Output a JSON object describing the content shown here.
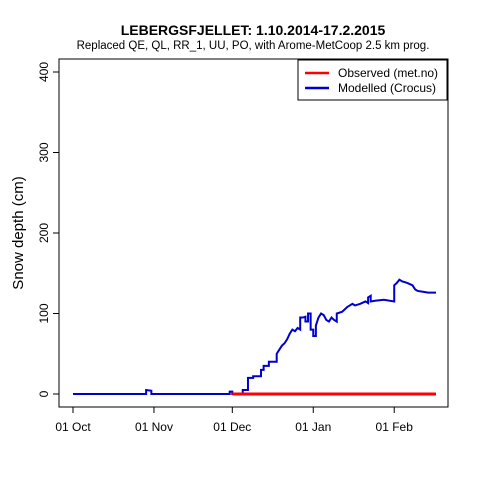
{
  "chart_data": {
    "type": "line",
    "title": "LEBERGSFJELLET: 1.10.2014-17.2.2015",
    "subtitle": "Replaced QE, QL, RR_1, UU, PO,  with Arome-MetCoop 2.5 km prog.",
    "xlabel": "",
    "ylabel": "Snow depth (cm)",
    "xlim": [
      "2014-10-01",
      "2015-02-17"
    ],
    "ylim": [
      0,
      400
    ],
    "x_ticks": [
      {
        "date": "2014-10-01",
        "label": "01 Oct"
      },
      {
        "date": "2014-11-01",
        "label": "01 Nov"
      },
      {
        "date": "2014-12-01",
        "label": "01 Dec"
      },
      {
        "date": "2015-01-01",
        "label": "01 Jan"
      },
      {
        "date": "2015-02-01",
        "label": "01 Feb"
      }
    ],
    "y_ticks": [
      0,
      100,
      200,
      300,
      400
    ],
    "grid": false,
    "legend_position": "top-right",
    "series": [
      {
        "name": "Observed (met.no)",
        "color": "#ff0000",
        "points": [
          [
            "2014-12-01",
            0
          ],
          [
            "2015-02-17",
            0
          ]
        ]
      },
      {
        "name": "Modelled (Crocus)",
        "color": "#0000cc",
        "points": [
          [
            "2014-10-01",
            0
          ],
          [
            "2014-10-29",
            0
          ],
          [
            "2014-10-29",
            5
          ],
          [
            "2014-10-31",
            4
          ],
          [
            "2014-10-31",
            0
          ],
          [
            "2014-11-30",
            0
          ],
          [
            "2014-11-30",
            3
          ],
          [
            "2014-12-01",
            3
          ],
          [
            "2014-12-01",
            0
          ],
          [
            "2014-12-05",
            0
          ],
          [
            "2014-12-05",
            5
          ],
          [
            "2014-12-07",
            5
          ],
          [
            "2014-12-07",
            20
          ],
          [
            "2014-12-09",
            20
          ],
          [
            "2014-12-09",
            22
          ],
          [
            "2014-12-12",
            22
          ],
          [
            "2014-12-12",
            30
          ],
          [
            "2014-12-13",
            30
          ],
          [
            "2014-12-13",
            35
          ],
          [
            "2014-12-15",
            35
          ],
          [
            "2014-12-15",
            40
          ],
          [
            "2014-12-18",
            40
          ],
          [
            "2014-12-18",
            50
          ],
          [
            "2014-12-19",
            55
          ],
          [
            "2014-12-20",
            60
          ],
          [
            "2014-12-21",
            63
          ],
          [
            "2014-12-22",
            68
          ],
          [
            "2014-12-23",
            75
          ],
          [
            "2014-12-24",
            80
          ],
          [
            "2014-12-25",
            78
          ],
          [
            "2014-12-26",
            82
          ],
          [
            "2014-12-27",
            80
          ],
          [
            "2014-12-27",
            95
          ],
          [
            "2014-12-28",
            95
          ],
          [
            "2014-12-29",
            96
          ],
          [
            "2014-12-29",
            90
          ],
          [
            "2014-12-30",
            90
          ],
          [
            "2014-12-30",
            100
          ],
          [
            "2014-12-31",
            100
          ],
          [
            "2014-12-31",
            80
          ],
          [
            "2015-01-01",
            80
          ],
          [
            "2015-01-01",
            72
          ],
          [
            "2015-01-02",
            72
          ],
          [
            "2015-01-02",
            85
          ],
          [
            "2015-01-03",
            95
          ],
          [
            "2015-01-04",
            100
          ],
          [
            "2015-01-05",
            98
          ],
          [
            "2015-01-06",
            92
          ],
          [
            "2015-01-07",
            90
          ],
          [
            "2015-01-08",
            95
          ],
          [
            "2015-01-09",
            92
          ],
          [
            "2015-01-10",
            90
          ],
          [
            "2015-01-10",
            100
          ],
          [
            "2015-01-12",
            102
          ],
          [
            "2015-01-13",
            105
          ],
          [
            "2015-01-14",
            108
          ],
          [
            "2015-01-15",
            110
          ],
          [
            "2015-01-16",
            112
          ],
          [
            "2015-01-17",
            110
          ],
          [
            "2015-01-19",
            112
          ],
          [
            "2015-01-21",
            115
          ],
          [
            "2015-01-22",
            113
          ],
          [
            "2015-01-22",
            120
          ],
          [
            "2015-01-23",
            122
          ],
          [
            "2015-01-23",
            115
          ],
          [
            "2015-01-25",
            116
          ],
          [
            "2015-01-28",
            117
          ],
          [
            "2015-02-01",
            115
          ],
          [
            "2015-02-01",
            135
          ],
          [
            "2015-02-02",
            138
          ],
          [
            "2015-02-03",
            142
          ],
          [
            "2015-02-04",
            140
          ],
          [
            "2015-02-06",
            138
          ],
          [
            "2015-02-08",
            135
          ],
          [
            "2015-02-09",
            130
          ],
          [
            "2015-02-10",
            128
          ],
          [
            "2015-02-12",
            127
          ],
          [
            "2015-02-14",
            126
          ],
          [
            "2015-02-17",
            126
          ]
        ]
      }
    ]
  }
}
